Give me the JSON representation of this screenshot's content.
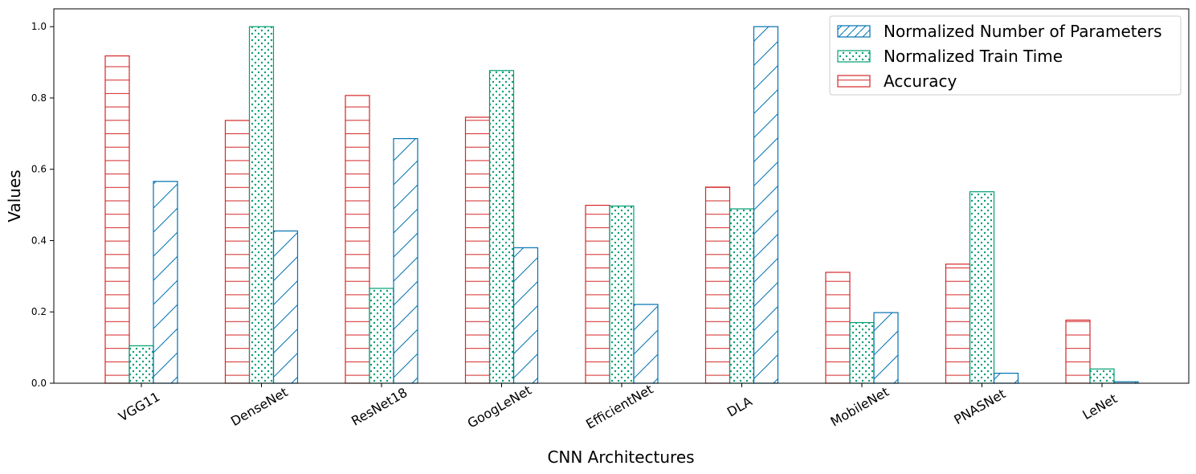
{
  "chart_data": {
    "type": "bar",
    "xlabel": "CNN Architectures",
    "ylabel": "Values",
    "ylim": [
      0,
      1.05
    ],
    "yticks": [
      "0.0",
      "0.2",
      "0.4",
      "0.6",
      "0.8",
      "1.0"
    ],
    "categories": [
      "VGG11",
      "DenseNet",
      "ResNet18",
      "GoogLeNet",
      "EfficientNet",
      "DLA",
      "MobileNet",
      "PNASNet",
      "LeNet"
    ],
    "series": [
      {
        "name": "Accuracy",
        "color": "#d62728",
        "hatch": "horizontal",
        "values": [
          0.918,
          0.737,
          0.807,
          0.746,
          0.499,
          0.55,
          0.311,
          0.334,
          0.177
        ]
      },
      {
        "name": "Normalized Train Time",
        "color": "#009e73",
        "hatch": "dots",
        "values": [
          0.105,
          1.0,
          0.266,
          0.877,
          0.497,
          0.489,
          0.17,
          0.537,
          0.04
        ]
      },
      {
        "name": "Normalized Number of Parameters",
        "color": "#0072b2",
        "hatch": "diagonal",
        "values": [
          0.566,
          0.427,
          0.686,
          0.38,
          0.221,
          1.0,
          0.198,
          0.028,
          0.004
        ]
      }
    ],
    "legend": {
      "position": "top-right",
      "entries": [
        "Normalized Number of Parameters",
        "Normalized Train Time",
        "Accuracy"
      ]
    },
    "grid": false
  }
}
